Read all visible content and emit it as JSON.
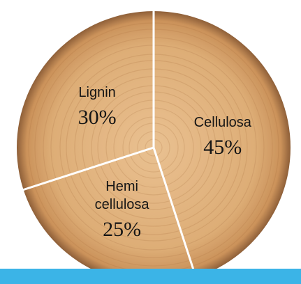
{
  "chart_data": {
    "type": "pie",
    "categories": [
      "Cellulosa",
      "Hemi\ncellulosa",
      "Lignin"
    ],
    "values": [
      45,
      25,
      30
    ],
    "value_labels": [
      "45%",
      "25%",
      "30%"
    ]
  }
}
